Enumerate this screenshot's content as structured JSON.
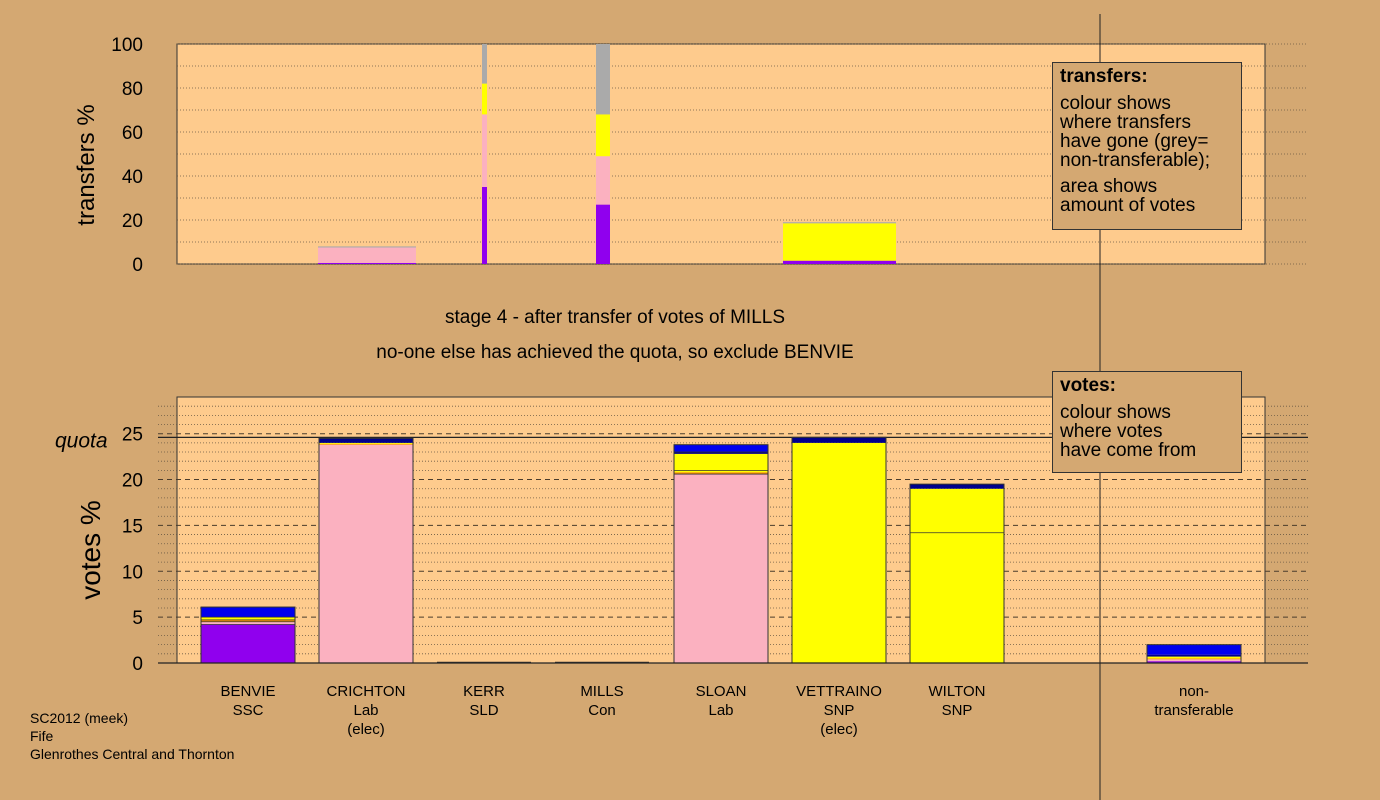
{
  "colors": {
    "background": "#d4a872",
    "panel": "#fecb8d",
    "purple": "#9000ee",
    "pink": "#fbb1c0",
    "yellow": "#ffff00",
    "grey": "#aaaaaa",
    "blue": "#0000ee",
    "navy": "#00008b",
    "orange": "#ff9900"
  },
  "captions": {
    "stage": "stage 4 - after transfer of votes of MILLS",
    "note": "no-one else has achieved the quota, so exclude BENVIE"
  },
  "legend_transfers": {
    "title": "transfers:",
    "line1": "colour shows",
    "line2": "where transfers",
    "line3": "have gone (grey=",
    "line4": "non-transferable);",
    "line5": "area shows",
    "line6": "amount of votes"
  },
  "legend_votes": {
    "title": "votes:",
    "line1": "colour shows",
    "line2": "where votes",
    "line3": "have come from"
  },
  "footer": {
    "line1": "SC2012 (meek)",
    "line2": "Fife",
    "line3": "Glenrothes Central and Thornton"
  },
  "chart_data": [
    {
      "type": "bar",
      "ylabel": "transfers %",
      "ylim": [
        0,
        100
      ],
      "yticks": [
        0,
        20,
        40,
        60,
        80,
        100
      ],
      "columns": [
        {
          "candidate": "BENVIE",
          "segments": []
        },
        {
          "candidate": "CRICHTON",
          "segments": [
            {
              "color": "purple",
              "value": 0.5
            },
            {
              "color": "pink",
              "value": 7.0
            },
            {
              "color": "grey",
              "value": 0.5
            }
          ]
        },
        {
          "candidate": "KERR",
          "segments": [
            {
              "color": "purple",
              "value": 35
            },
            {
              "color": "pink",
              "value": 33
            },
            {
              "color": "yellow",
              "value": 14
            },
            {
              "color": "grey",
              "value": 18
            }
          ]
        },
        {
          "candidate": "MILLS",
          "segments": [
            {
              "color": "purple",
              "value": 27
            },
            {
              "color": "pink",
              "value": 22
            },
            {
              "color": "yellow",
              "value": 19
            },
            {
              "color": "grey",
              "value": 32
            }
          ]
        },
        {
          "candidate": "SLOAN",
          "segments": []
        },
        {
          "candidate": "VETTRAINO",
          "segments": [
            {
              "color": "purple",
              "value": 1.5
            },
            {
              "color": "yellow",
              "value": 17
            },
            {
              "color": "grey",
              "value": 0.5
            }
          ]
        },
        {
          "candidate": "WILTON",
          "segments": []
        }
      ]
    },
    {
      "type": "bar",
      "ylabel": "votes %",
      "ylim": [
        0,
        29
      ],
      "yticks": [
        0,
        5,
        10,
        15,
        20,
        25
      ],
      "quota": 24.6,
      "quota_label": "quota",
      "categories": [
        "BENVIE",
        "CRICHTON",
        "KERR",
        "MILLS",
        "SLOAN",
        "VETTRAINO",
        "WILTON",
        "non-transferable"
      ],
      "category_labels": [
        [
          "BENVIE",
          "SSC"
        ],
        [
          "CRICHTON",
          "Lab",
          "(elec)"
        ],
        [
          "KERR",
          "SLD"
        ],
        [
          "MILLS",
          "Con"
        ],
        [
          "SLOAN",
          "Lab"
        ],
        [
          "VETTRAINO",
          "SNP",
          "(elec)"
        ],
        [
          "WILTON",
          "SNP"
        ],
        [
          "non-",
          "transferable"
        ]
      ],
      "series": [
        {
          "name": "purple",
          "values": [
            4.2,
            0,
            0,
            0,
            0,
            0,
            0,
            0.2
          ]
        },
        {
          "name": "pink",
          "values": [
            0.3,
            23.8,
            0,
            0,
            20.6,
            0,
            0,
            0.2
          ]
        },
        {
          "name": "orange",
          "values": [
            0.2,
            0.1,
            0,
            0,
            0.2,
            0,
            0,
            0.1
          ]
        },
        {
          "name": "yellow",
          "values": [
            0.3,
            0.1,
            0,
            0,
            2.0,
            24.0,
            19.0,
            0.2
          ]
        },
        {
          "name": "navy",
          "values": [
            0.0,
            0.5,
            0,
            0,
            0.2,
            0.6,
            0.5,
            0.2
          ]
        },
        {
          "name": "blue",
          "values": [
            1.1,
            0,
            0,
            0,
            0.8,
            0,
            0,
            1.1
          ]
        }
      ],
      "inner_lines": [
        {
          "index": 0,
          "values": [
            4.2,
            4.5,
            4.7,
            5.0
          ]
        },
        {
          "index": 4,
          "values": [
            20.6,
            21.0,
            23.0
          ]
        },
        {
          "index": 6,
          "values": [
            14.2
          ]
        }
      ]
    }
  ]
}
